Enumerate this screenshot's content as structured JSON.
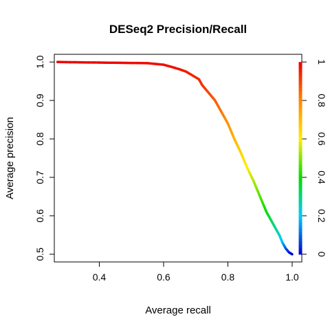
{
  "chart_data": {
    "type": "line",
    "title": "DESeq2 Precision/Recall",
    "xlabel": "Average recall",
    "ylabel": "Average precision",
    "xlim": [
      0.26,
      1.03
    ],
    "ylim": [
      0.48,
      1.02
    ],
    "x_ticks": [
      "0.4",
      "0.6",
      "0.8",
      "1.0"
    ],
    "y_ticks": [
      "0.5",
      "0.6",
      "0.7",
      "0.8",
      "0.9",
      "1.0"
    ],
    "colorbar": {
      "ticks": [
        "0",
        "0.2",
        "0.4",
        "0.6",
        "0.8",
        "1"
      ],
      "colors": [
        "#0000cc",
        "#00ccff",
        "#00dd00",
        "#ffee00",
        "#ff8800",
        "#ee0000"
      ]
    },
    "grid": false,
    "series": [
      {
        "x": [
          0.27,
          0.35,
          0.45,
          0.55,
          0.6,
          0.63,
          0.65,
          0.67,
          0.69,
          0.71,
          0.72,
          0.74,
          0.76,
          0.78,
          0.8,
          0.82,
          0.84,
          0.86,
          0.88,
          0.9,
          0.92,
          0.94,
          0.96,
          0.97,
          0.98,
          0.99,
          1.0
        ],
        "y": [
          1.0,
          0.999,
          0.998,
          0.997,
          0.993,
          0.986,
          0.981,
          0.975,
          0.965,
          0.955,
          0.94,
          0.92,
          0.9,
          0.87,
          0.84,
          0.8,
          0.765,
          0.725,
          0.69,
          0.65,
          0.61,
          0.58,
          0.55,
          0.53,
          0.515,
          0.505,
          0.5
        ],
        "cutoff": [
          1.0,
          0.995,
          0.99,
          0.985,
          0.98,
          0.975,
          0.97,
          0.96,
          0.95,
          0.94,
          0.93,
          0.9,
          0.87,
          0.83,
          0.78,
          0.72,
          0.66,
          0.6,
          0.54,
          0.47,
          0.4,
          0.32,
          0.25,
          0.18,
          0.1,
          0.04,
          0.0
        ]
      }
    ]
  }
}
